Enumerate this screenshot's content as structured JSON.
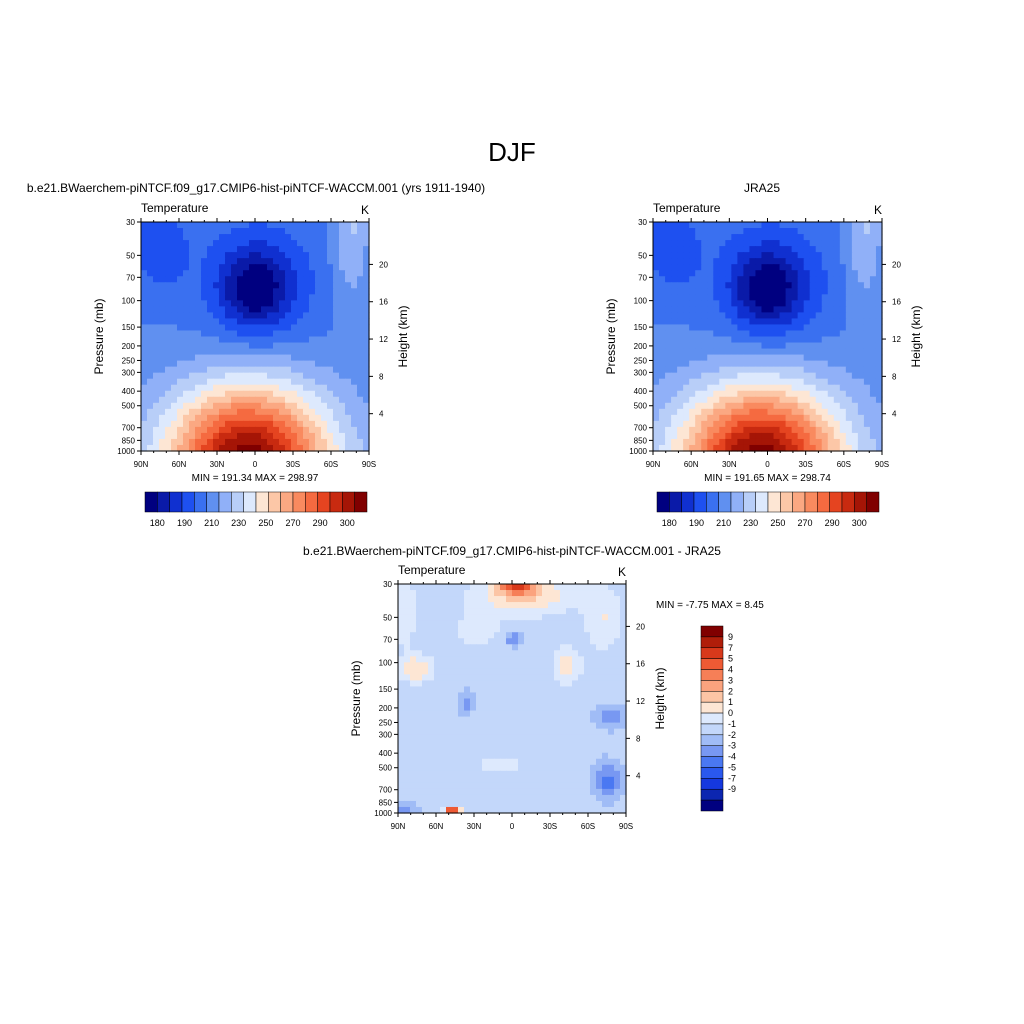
{
  "page": {
    "title": "DJF"
  },
  "colors": {
    "abs_palette": [
      "#000080",
      "#0a1aa8",
      "#1030d0",
      "#1e50f0",
      "#3a70f0",
      "#6090f0",
      "#90b0f8",
      "#b8cef8",
      "#dde9fd",
      "#fde6d4",
      "#fcc7a7",
      "#fba882",
      "#f98a5f",
      "#f56a40",
      "#e54420",
      "#c82a10",
      "#a51506",
      "#800000"
    ],
    "diff_palette": [
      "#000080",
      "#0c26b0",
      "#1538de",
      "#2a58ee",
      "#4a78f2",
      "#7898f2",
      "#a0bcf6",
      "#c3d7fa",
      "#dde9fd",
      "#fde6d4",
      "#fcc5a5",
      "#fba37e",
      "#f67f57",
      "#ee5a34",
      "#d8391b",
      "#b01e0a",
      "#800000"
    ]
  },
  "chart_data": [
    {
      "type": "heatmap",
      "title": "b.e21.BWaerchem-piNTCF.f09_g17.CMIP6-hist-piNTCF-WACCM.001 (yrs 1911-1940)",
      "left_label": "Temperature",
      "units": "K",
      "ylabel": "Pressure (mb)",
      "ylabel_right": "Height (km)",
      "x_ticks": [
        "90N",
        "60N",
        "30N",
        "0",
        "30S",
        "60S",
        "90S"
      ],
      "y_ticks": [
        "30",
        "50",
        "70",
        "100",
        "150",
        "200",
        "250",
        "300",
        "400",
        "500",
        "700",
        "850",
        "1000"
      ],
      "y_right_ticks": [
        "20",
        "16",
        "12",
        "8",
        "4"
      ],
      "min_max_text": "MIN = 191.34  MAX = 298.97",
      "colorbar_labels": [
        "180",
        "190",
        "210",
        "230",
        "250",
        "270",
        "290",
        "300"
      ],
      "field_range": [
        191.34,
        298.97
      ]
    },
    {
      "type": "heatmap",
      "title": "JRA25",
      "left_label": "Temperature",
      "units": "K",
      "ylabel": "Pressure (mb)",
      "ylabel_right": "Height (km)",
      "x_ticks": [
        "90N",
        "60N",
        "30N",
        "0",
        "30S",
        "60S",
        "90S"
      ],
      "y_ticks": [
        "30",
        "50",
        "70",
        "100",
        "150",
        "200",
        "250",
        "300",
        "400",
        "500",
        "700",
        "850",
        "1000"
      ],
      "y_right_ticks": [
        "20",
        "16",
        "12",
        "8",
        "4"
      ],
      "min_max_text": "MIN = 191.65  MAX = 298.74",
      "colorbar_labels": [
        "180",
        "190",
        "210",
        "230",
        "250",
        "270",
        "290",
        "300"
      ],
      "field_range": [
        191.65,
        298.74
      ]
    },
    {
      "type": "heatmap",
      "title": "b.e21.BWaerchem-piNTCF.f09_g17.CMIP6-hist-piNTCF-WACCM.001 - JRA25",
      "left_label": "Temperature",
      "units": "K",
      "ylabel": "Pressure (mb)",
      "ylabel_right": "Height (km)",
      "x_ticks": [
        "90N",
        "60N",
        "30N",
        "0",
        "30S",
        "60S",
        "90S"
      ],
      "y_ticks": [
        "30",
        "50",
        "70",
        "100",
        "150",
        "200",
        "250",
        "300",
        "400",
        "500",
        "700",
        "850",
        "1000"
      ],
      "y_right_ticks": [
        "20",
        "16",
        "12",
        "8",
        "4"
      ],
      "min_max_text": "MIN =  -7.75  MAX =   8.45",
      "colorbar_labels": [
        "9",
        "7",
        "5",
        "4",
        "3",
        "2",
        "1",
        "0",
        "-1",
        "-2",
        "-3",
        "-4",
        "-5",
        "-7",
        "-9"
      ],
      "field_range": [
        -7.75,
        8.45
      ]
    }
  ]
}
